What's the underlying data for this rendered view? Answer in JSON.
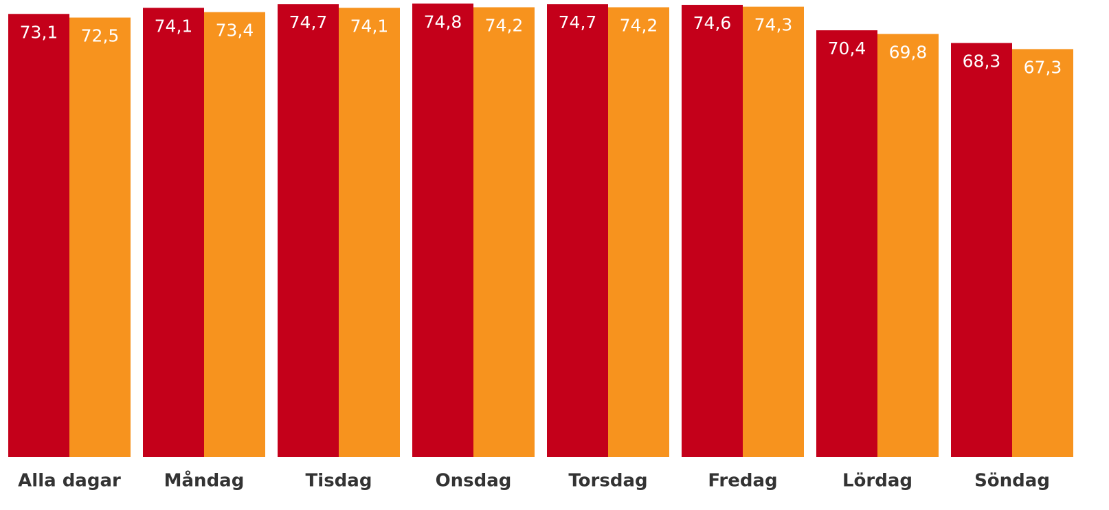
{
  "chart_data": {
    "type": "bar",
    "categories": [
      "Alla dagar",
      "Måndag",
      "Tisdag",
      "Onsdag",
      "Torsdag",
      "Fredag",
      "Lördag",
      "Söndag"
    ],
    "series": [
      {
        "color": "#c4001a",
        "values": [
          73.1,
          74.1,
          74.7,
          74.8,
          74.7,
          74.6,
          70.4,
          68.3
        ],
        "value_labels": [
          "73,1",
          "74,1",
          "74,7",
          "74,8",
          "74,7",
          "74,6",
          "70,4",
          "68,3"
        ]
      },
      {
        "color": "#f7931e",
        "values": [
          72.5,
          73.4,
          74.1,
          74.2,
          74.2,
          74.3,
          69.8,
          67.3
        ],
        "value_labels": [
          "72,5",
          "73,4",
          "74,1",
          "74,2",
          "74,2",
          "74,3",
          "69,8",
          "67,3"
        ]
      }
    ],
    "ylim": [
      0,
      75
    ]
  }
}
